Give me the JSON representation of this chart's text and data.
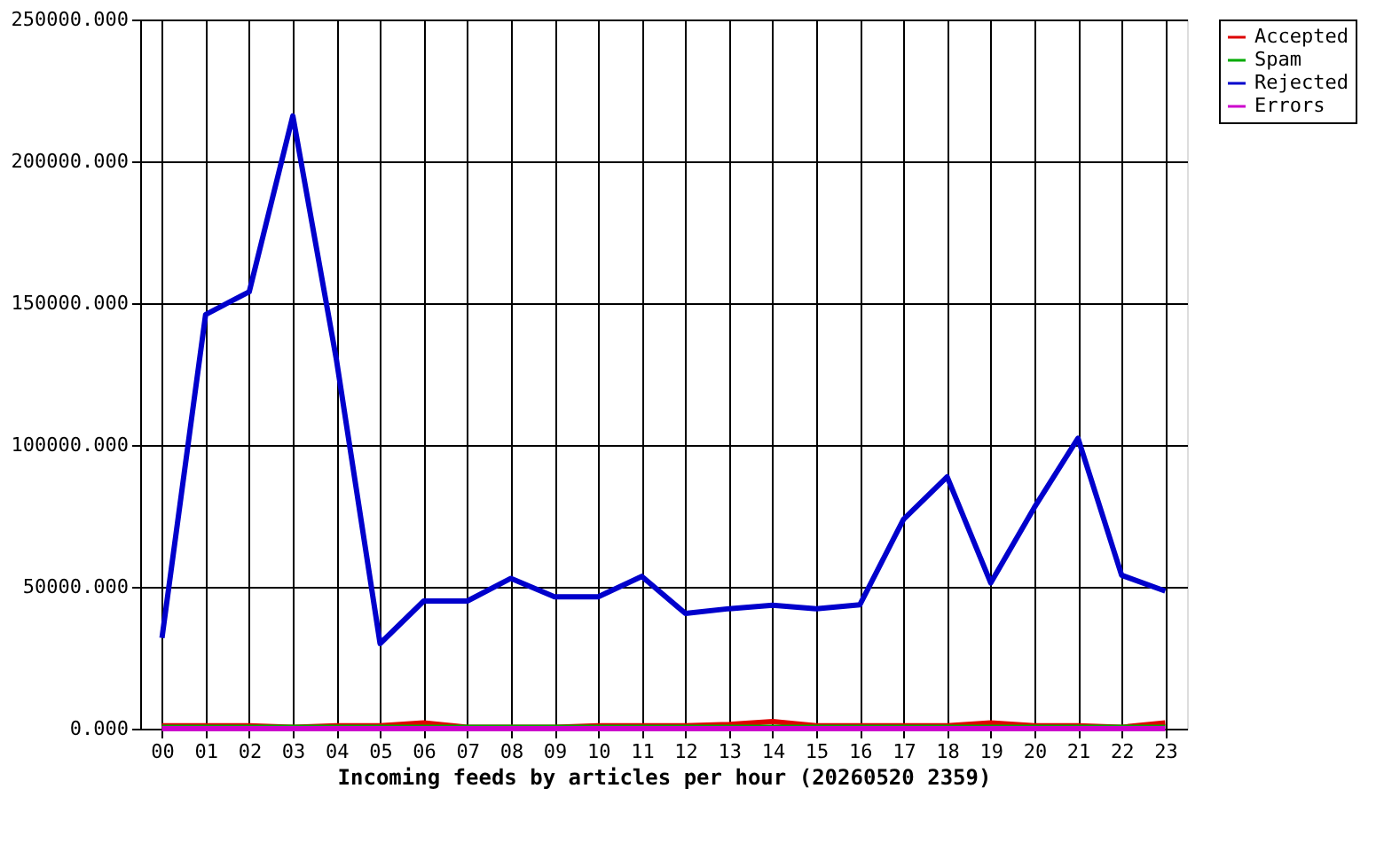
{
  "chart_data": {
    "type": "line",
    "xlabel": "Incoming feeds by articles per hour (20260520 2359)",
    "categories": [
      "00",
      "01",
      "02",
      "03",
      "04",
      "05",
      "06",
      "07",
      "08",
      "09",
      "10",
      "11",
      "12",
      "13",
      "14",
      "15",
      "16",
      "17",
      "18",
      "19",
      "20",
      "21",
      "22",
      "23"
    ],
    "series": [
      {
        "name": "Accepted",
        "color": "#dd0000",
        "values": [
          1000,
          1000,
          1000,
          500,
          1000,
          1000,
          2000,
          500,
          500,
          500,
          1000,
          1000,
          1000,
          1500,
          2500,
          1000,
          1000,
          1000,
          1000,
          2000,
          1000,
          1000,
          500,
          2000
        ]
      },
      {
        "name": "Spam",
        "color": "#00aa00",
        "values": [
          500,
          500,
          500,
          500,
          500,
          500,
          500,
          500,
          500,
          500,
          500,
          500,
          500,
          500,
          500,
          500,
          500,
          500,
          500,
          500,
          500,
          500,
          500,
          500
        ]
      },
      {
        "name": "Rejected",
        "color": "#0000cc",
        "values": [
          32000,
          146000,
          154000,
          216000,
          130000,
          30000,
          45000,
          45000,
          53000,
          46500,
          46500,
          53700,
          40600,
          42300,
          43500,
          42300,
          43700,
          73800,
          88800,
          51400,
          78000,
          102400,
          54100,
          48500
        ]
      },
      {
        "name": "Errors",
        "color": "#cc00cc",
        "values": [
          0,
          0,
          0,
          0,
          0,
          0,
          0,
          0,
          0,
          0,
          0,
          0,
          0,
          0,
          0,
          0,
          0,
          0,
          0,
          0,
          0,
          0,
          0,
          0
        ]
      }
    ],
    "ylim": [
      0,
      250000
    ],
    "yticks": [
      {
        "value": 0,
        "label": "0.000"
      },
      {
        "value": 50000,
        "label": "50000.000"
      },
      {
        "value": 100000,
        "label": "100000.000"
      },
      {
        "value": 150000,
        "label": "150000.000"
      },
      {
        "value": 200000,
        "label": "200000.000"
      },
      {
        "value": 250000,
        "label": "250000.000"
      }
    ],
    "grid": true,
    "legend": "top right",
    "marker": "none",
    "line_style": "solid"
  }
}
